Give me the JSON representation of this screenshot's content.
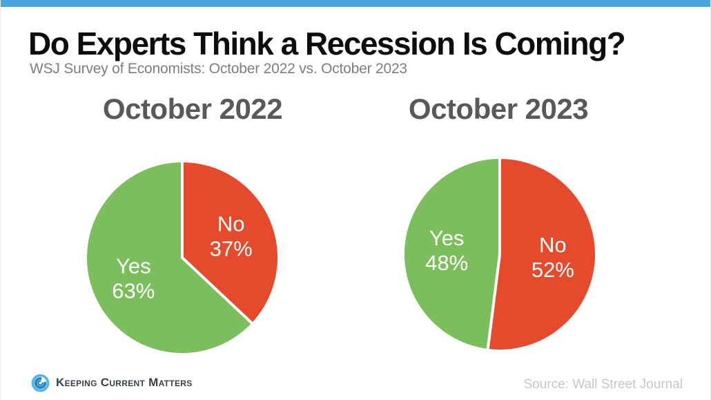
{
  "slide": {
    "title": "Do Experts Think a Recession Is Coming?",
    "subtitle": "WSJ Survey of Economists: October 2022 vs. October 2023",
    "source": "Source: Wall Street Journal",
    "brand": "Keeping Current Matters",
    "accent_bar_color": "#4ba5dd"
  },
  "chart_data": [
    {
      "type": "pie",
      "title": "October 2022",
      "start_angle_deg": -90,
      "direction": "clockwise",
      "labels_inside": true,
      "legend_position": "none",
      "slices": [
        {
          "label": "No",
          "value": 37,
          "color": "#e44a2b"
        },
        {
          "label": "Yes",
          "value": 63,
          "color": "#7cbd5c"
        }
      ]
    },
    {
      "type": "pie",
      "title": "October 2023",
      "start_angle_deg": -90,
      "direction": "clockwise",
      "labels_inside": true,
      "legend_position": "none",
      "slices": [
        {
          "label": "No",
          "value": 52,
          "color": "#e44a2b"
        },
        {
          "label": "Yes",
          "value": 48,
          "color": "#7cbd5c"
        }
      ]
    }
  ]
}
